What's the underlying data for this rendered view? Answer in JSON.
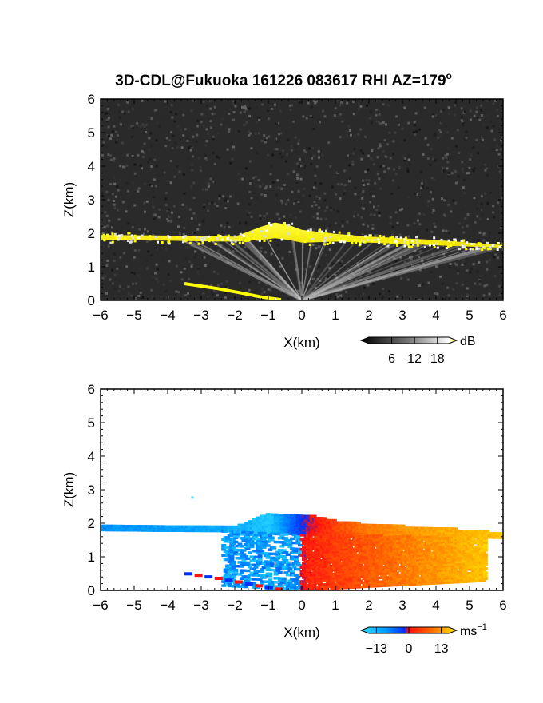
{
  "figure": {
    "title": "3D-CDL@Fukuoka 161226 083617 RHI AZ=179",
    "title_superscript": "o"
  },
  "colors": {
    "background_noise": "#2a2a2a",
    "cloud_layer": "#ffff00",
    "velocity_neg": "#0050ff",
    "velocity_zero": "#ff2000",
    "velocity_pos": "#ffd000"
  },
  "chart_data": [
    {
      "type": "heatmap",
      "name": "reflectivity",
      "xlabel": "X(km)",
      "ylabel": "Z(km)",
      "xlim": [
        -6,
        6
      ],
      "ylim": [
        0,
        6
      ],
      "x_ticks": [
        "-6",
        "-5",
        "-4",
        "-3",
        "-2",
        "-1",
        "0",
        "1",
        "2",
        "3",
        "4",
        "5",
        "6"
      ],
      "y_ticks": [
        "0",
        "1",
        "2",
        "3",
        "4",
        "5",
        "6"
      ],
      "colorbar": {
        "unit": "dB",
        "ticks": [
          "6",
          "12",
          "18"
        ],
        "range": [
          0,
          21
        ]
      },
      "cloud_layer": {
        "x": [
          -6,
          -4,
          -3,
          -2,
          -1.2,
          -0.8,
          -0.4,
          0,
          1,
          2,
          3,
          4,
          5,
          6
        ],
        "z_base": [
          1.8,
          1.78,
          1.76,
          1.75,
          1.8,
          1.85,
          1.8,
          1.72,
          1.75,
          1.72,
          1.68,
          1.64,
          1.6,
          1.57
        ],
        "z_top": [
          1.95,
          1.93,
          1.92,
          1.9,
          2.2,
          2.32,
          2.25,
          2.1,
          1.98,
          1.9,
          1.85,
          1.8,
          1.72,
          1.65
        ]
      },
      "surface_echo": {
        "x": [
          -3.5,
          -2.5,
          -1.8,
          -1.2,
          -0.6
        ],
        "z": [
          0.5,
          0.35,
          0.22,
          0.1,
          0.02
        ]
      }
    },
    {
      "type": "heatmap",
      "name": "doppler_velocity",
      "xlabel": "X(km)",
      "ylabel": "Z(km)",
      "xlim": [
        -6,
        6
      ],
      "ylim": [
        0,
        6
      ],
      "x_ticks": [
        "-6",
        "-5",
        "-4",
        "-3",
        "-2",
        "-1",
        "0",
        "1",
        "2",
        "3",
        "4",
        "5",
        "6"
      ],
      "y_ticks": [
        "0",
        "1",
        "2",
        "3",
        "4",
        "5",
        "6"
      ],
      "colorbar": {
        "unit": "ms",
        "unit_exponent": "-1",
        "ticks": [
          "-13",
          "0",
          "13"
        ],
        "range": [
          -16,
          16
        ]
      },
      "layer": {
        "x": [
          -6,
          -4,
          -2,
          -1,
          0,
          1,
          2,
          4,
          6
        ],
        "z_base": [
          1.78,
          1.76,
          1.75,
          1.7,
          1.65,
          1.64,
          1.62,
          1.58,
          1.55
        ],
        "z_top": [
          1.95,
          1.92,
          1.9,
          2.3,
          2.25,
          2.05,
          1.95,
          1.85,
          1.7
        ],
        "velocity": [
          -9,
          -10,
          -11,
          -14,
          -2,
          4,
          8,
          11,
          13
        ]
      }
    }
  ]
}
